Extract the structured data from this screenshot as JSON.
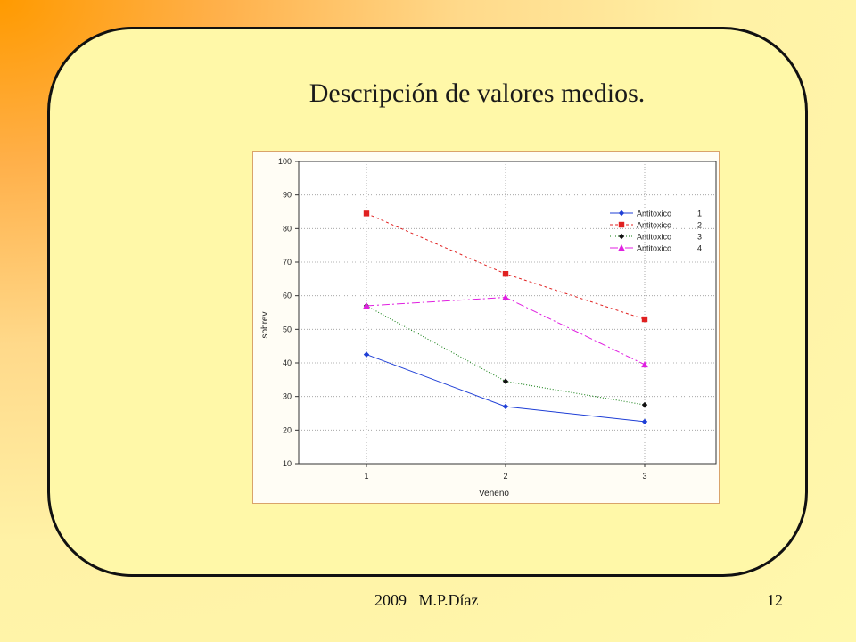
{
  "slide": {
    "title": "Descripción de valores medios.",
    "footer_left": "2009   M.P.Díaz",
    "page_number": "12"
  },
  "colors": {
    "frame_border": "#111111",
    "frame_fill": "#fff8a8",
    "chart_border": "#d9a36a"
  },
  "chart_data": {
    "type": "line",
    "xlabel": "Veneno",
    "ylabel": "sobrev",
    "categories": [
      "1",
      "2",
      "3"
    ],
    "ylim": [
      10,
      100
    ],
    "yticks": [
      10,
      20,
      30,
      40,
      50,
      60,
      70,
      80,
      90,
      100
    ],
    "grid": true,
    "legend_position": "top-right",
    "series": [
      {
        "name": "Antitoxico",
        "level": "1",
        "values": [
          42.5,
          27.0,
          22.5
        ],
        "color": "#1f3fd6",
        "dash": "",
        "marker": "diamond"
      },
      {
        "name": "Antitoxico",
        "level": "2",
        "values": [
          84.5,
          66.5,
          53.0
        ],
        "color": "#e02020",
        "dash": "3,3",
        "marker": "square"
      },
      {
        "name": "Antitoxico",
        "level": "3",
        "values": [
          57.0,
          34.5,
          27.5
        ],
        "color": "#0b7a0b",
        "dash": "1,2",
        "marker": "diamond-black"
      },
      {
        "name": "Antitoxico",
        "level": "4",
        "values": [
          57.0,
          59.5,
          39.5
        ],
        "color": "#e020e0",
        "dash": "9,3,2,3",
        "marker": "triangle"
      }
    ]
  }
}
